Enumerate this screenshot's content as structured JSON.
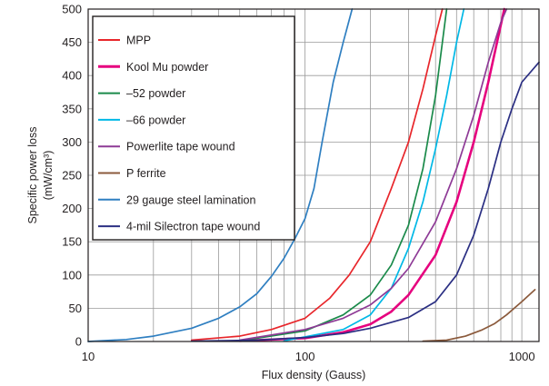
{
  "chart_data": {
    "type": "line",
    "xscale": "log",
    "xlim": [
      10,
      1200
    ],
    "ylim": [
      0,
      500
    ],
    "xlabel": "Flux density (Gauss)",
    "ylabel_line1": "Specific power loss",
    "ylabel_line2": "(mW/cm³)",
    "x_ticks": [
      {
        "value": 10,
        "label": "10"
      },
      {
        "value": 100,
        "label": "100"
      },
      {
        "value": 1000,
        "label": "1000"
      }
    ],
    "y_ticks": [
      {
        "value": 0,
        "label": "0"
      },
      {
        "value": 50,
        "label": "50"
      },
      {
        "value": 100,
        "label": "100"
      },
      {
        "value": 150,
        "label": "150"
      },
      {
        "value": 200,
        "label": "200"
      },
      {
        "value": 250,
        "label": "250"
      },
      {
        "value": 300,
        "label": "300"
      },
      {
        "value": 350,
        "label": "350"
      },
      {
        "value": 400,
        "label": "400"
      },
      {
        "value": 450,
        "label": "450"
      },
      {
        "value": 500,
        "label": "500"
      }
    ],
    "grid": true,
    "legend_position": "top-left",
    "series": [
      {
        "name": "MPP",
        "color": "#e8262b",
        "thick": false,
        "points": [
          [
            30,
            2
          ],
          [
            50,
            8
          ],
          [
            70,
            18
          ],
          [
            100,
            35
          ],
          [
            130,
            65
          ],
          [
            160,
            100
          ],
          [
            200,
            150
          ],
          [
            250,
            230
          ],
          [
            300,
            300
          ],
          [
            350,
            380
          ],
          [
            400,
            460
          ],
          [
            430,
            500
          ]
        ]
      },
      {
        "name": "Kool Mu powder",
        "color": "#e6007e",
        "thick": true,
        "points": [
          [
            50,
            1
          ],
          [
            100,
            5
          ],
          [
            150,
            14
          ],
          [
            200,
            26
          ],
          [
            250,
            45
          ],
          [
            300,
            70
          ],
          [
            400,
            130
          ],
          [
            500,
            210
          ],
          [
            600,
            300
          ],
          [
            700,
            390
          ],
          [
            780,
            460
          ],
          [
            830,
            500
          ]
        ]
      },
      {
        "name": "–52 powder",
        "color": "#1a8a4a",
        "thick": false,
        "points": [
          [
            50,
            1
          ],
          [
            100,
            16
          ],
          [
            150,
            40
          ],
          [
            200,
            70
          ],
          [
            250,
            115
          ],
          [
            300,
            175
          ],
          [
            350,
            260
          ],
          [
            400,
            370
          ],
          [
            430,
            450
          ],
          [
            450,
            500
          ]
        ]
      },
      {
        "name": "–66 powder",
        "color": "#00b8e6",
        "thick": false,
        "points": [
          [
            80,
            1
          ],
          [
            150,
            18
          ],
          [
            200,
            40
          ],
          [
            250,
            80
          ],
          [
            300,
            140
          ],
          [
            350,
            210
          ],
          [
            400,
            290
          ],
          [
            450,
            370
          ],
          [
            500,
            450
          ],
          [
            540,
            500
          ]
        ]
      },
      {
        "name": "Powerlite tape wound",
        "color": "#8e3a96",
        "thick": false,
        "points": [
          [
            50,
            2
          ],
          [
            100,
            18
          ],
          [
            150,
            35
          ],
          [
            200,
            55
          ],
          [
            250,
            80
          ],
          [
            300,
            110
          ],
          [
            400,
            180
          ],
          [
            500,
            260
          ],
          [
            600,
            340
          ],
          [
            700,
            420
          ],
          [
            800,
            480
          ],
          [
            850,
            500
          ]
        ]
      },
      {
        "name": "P ferrite",
        "color": "#8b5a3c",
        "thick": false,
        "points": [
          [
            350,
            0.5
          ],
          [
            450,
            2
          ],
          [
            550,
            8
          ],
          [
            650,
            17
          ],
          [
            750,
            27
          ],
          [
            850,
            40
          ],
          [
            1000,
            60
          ],
          [
            1150,
            78
          ]
        ]
      },
      {
        "name": "29 gauge steel lamination",
        "color": "#2f7fc1",
        "thick": false,
        "points": [
          [
            10,
            0
          ],
          [
            15,
            3
          ],
          [
            20,
            8
          ],
          [
            30,
            20
          ],
          [
            40,
            35
          ],
          [
            50,
            52
          ],
          [
            60,
            72
          ],
          [
            70,
            98
          ],
          [
            80,
            125
          ],
          [
            90,
            155
          ],
          [
            100,
            185
          ],
          [
            110,
            230
          ],
          [
            120,
            300
          ],
          [
            135,
            390
          ],
          [
            150,
            450
          ],
          [
            165,
            500
          ]
        ]
      },
      {
        "name": "4-mil Silectron tape wound",
        "color": "#2b2f83",
        "thick": false,
        "points": [
          [
            30,
            0.5
          ],
          [
            60,
            2
          ],
          [
            100,
            6
          ],
          [
            150,
            12
          ],
          [
            200,
            20
          ],
          [
            300,
            36
          ],
          [
            400,
            60
          ],
          [
            500,
            100
          ],
          [
            600,
            160
          ],
          [
            700,
            230
          ],
          [
            800,
            300
          ],
          [
            900,
            350
          ],
          [
            1000,
            390
          ],
          [
            1200,
            420
          ]
        ]
      }
    ]
  }
}
